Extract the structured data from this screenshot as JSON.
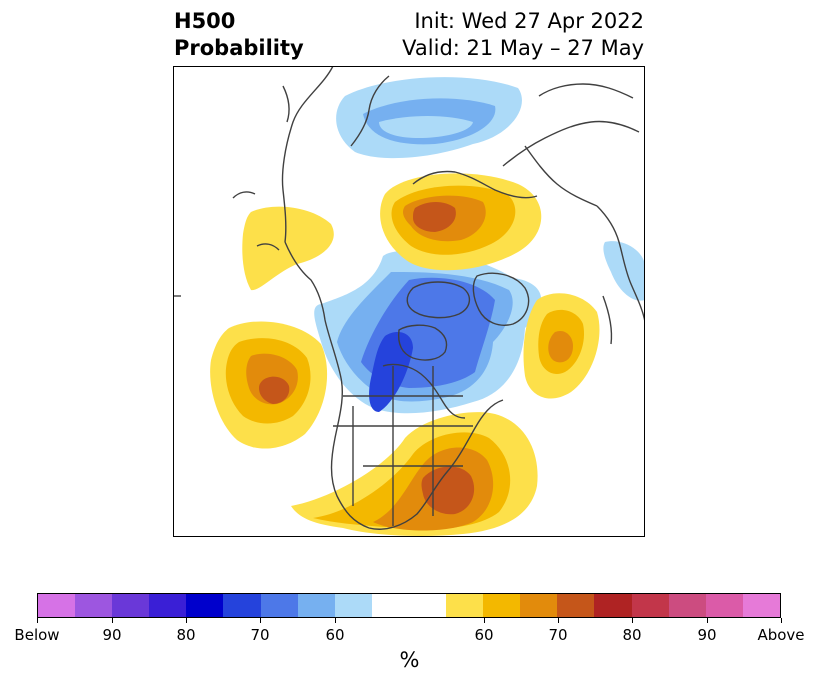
{
  "title": {
    "left_line1": "H500",
    "left_line2": "Probability",
    "right_line1": "Init: Wed 27 Apr 2022",
    "right_line2": "Valid: 21 May – 27 May"
  },
  "colorbar": {
    "colors": [
      "#d672e6",
      "#9d56e0",
      "#6a38d8",
      "#3a1fd6",
      "#0000cc",
      "#2543dc",
      "#4d78e8",
      "#76b0f0",
      "#acdaf8",
      "#ffffff",
      "#ffffff",
      "#fde04a",
      "#f3b800",
      "#e28b0c",
      "#c5561a",
      "#af2323",
      "#c2364a",
      "#cc4c80",
      "#db5ba8",
      "#e67ad8"
    ],
    "tick_labels": [
      "Below",
      "90",
      "80",
      "70",
      "60",
      "60",
      "70",
      "80",
      "90",
      "Above"
    ],
    "unit_label": "%"
  },
  "map": {
    "colors": {
      "below_light": "#acdaf8",
      "below_mid": "#76b0f0",
      "below_strong": "#4d78e8",
      "below_stronger": "#2543dc",
      "above_light": "#fde04a",
      "above_mid": "#f3b800",
      "above_strong": "#e28b0c",
      "above_stronger": "#c5561a",
      "coastline": "#404040"
    }
  }
}
